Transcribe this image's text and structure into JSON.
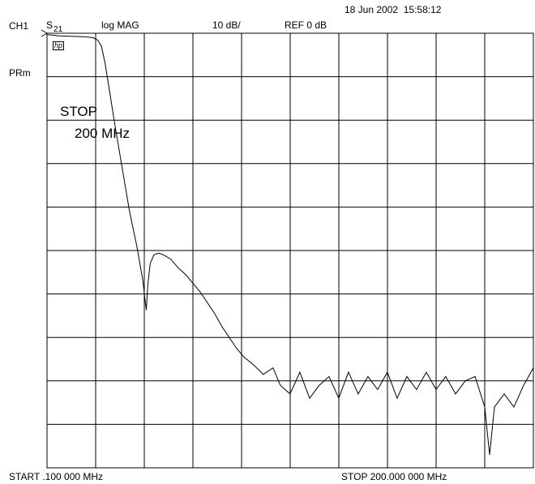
{
  "header": {
    "date": "18 Jun 2002",
    "time": "15:58:12",
    "channel": "CH1",
    "param_main": "S",
    "param_sub": "21",
    "format": "log MAG",
    "scale": "10 dB/",
    "reference": "REF 0 dB",
    "logo": "hp",
    "mode": "PRm"
  },
  "annotation": {
    "line1": "STOP",
    "line2": "200 MHz"
  },
  "footer": {
    "start": "START  .100 000 MHz",
    "stop": "STOP  200.000 000 MHz"
  },
  "colors": {
    "background": "#ffffff",
    "grid": "#000000",
    "trace": "#000000"
  },
  "chart_data": {
    "type": "line",
    "title": "",
    "xlabel": "",
    "ylabel": "",
    "x_unit": "MHz",
    "y_unit": "dB",
    "xlim": [
      0.1,
      200
    ],
    "ylim": [
      -100,
      0
    ],
    "divisions_x": 10,
    "divisions_y": 10,
    "grid": true,
    "series": [
      {
        "values": [
          [
            0.1,
            0.3
          ],
          [
            5,
            0.6
          ],
          [
            10,
            0.7
          ],
          [
            15,
            0.8
          ],
          [
            19,
            1.0
          ],
          [
            21,
            1.6
          ],
          [
            22.5,
            3
          ],
          [
            24,
            7
          ],
          [
            26,
            14
          ],
          [
            28,
            21
          ],
          [
            31,
            31
          ],
          [
            34,
            41
          ],
          [
            37,
            49
          ],
          [
            39.5,
            57
          ],
          [
            40.5,
            62
          ],
          [
            40.9,
            63.7
          ],
          [
            41.5,
            58
          ],
          [
            42.5,
            53
          ],
          [
            44,
            51
          ],
          [
            46,
            50.6
          ],
          [
            48,
            51
          ],
          [
            51,
            52
          ],
          [
            54,
            54
          ],
          [
            57,
            55.5
          ],
          [
            60,
            57.5
          ],
          [
            63,
            59.5
          ],
          [
            66,
            62
          ],
          [
            69,
            64.5
          ],
          [
            72,
            67.5
          ],
          [
            75,
            70
          ],
          [
            78,
            72.5
          ],
          [
            81,
            74.5
          ],
          [
            85,
            76.3
          ],
          [
            89,
            78.5
          ],
          [
            93,
            77
          ],
          [
            96,
            81
          ],
          [
            100,
            83
          ],
          [
            104,
            78
          ],
          [
            108,
            84
          ],
          [
            112,
            81
          ],
          [
            116,
            79
          ],
          [
            120,
            84
          ],
          [
            124,
            78
          ],
          [
            128,
            83
          ],
          [
            132,
            79
          ],
          [
            136,
            82
          ],
          [
            140,
            78
          ],
          [
            144,
            84
          ],
          [
            148,
            79
          ],
          [
            152,
            82
          ],
          [
            156,
            78
          ],
          [
            160,
            82
          ],
          [
            164,
            79
          ],
          [
            168,
            83
          ],
          [
            172,
            80
          ],
          [
            176,
            79
          ],
          [
            180,
            86
          ],
          [
            182,
            97
          ],
          [
            184,
            86
          ],
          [
            188,
            83
          ],
          [
            192,
            86
          ],
          [
            196,
            81
          ],
          [
            200,
            77
          ]
        ]
      }
    ]
  }
}
